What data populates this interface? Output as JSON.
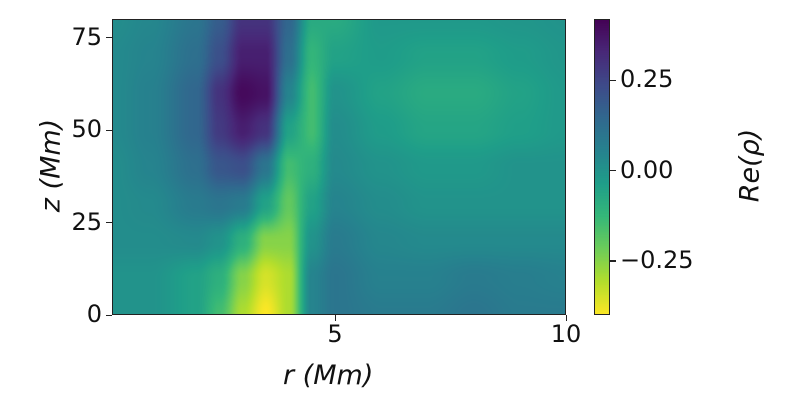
{
  "chart_data": {
    "type": "heatmap",
    "xlabel": "r (Mm)",
    "ylabel": "z (Mm)",
    "colorbar_label": "Re(ρ)",
    "colormap": "viridis_r",
    "xlim": [
      0.17,
      10
    ],
    "ylim": [
      0,
      80
    ],
    "clim": [
      -0.4,
      0.42
    ],
    "x_ticks": [
      {
        "value": 5,
        "label": "5"
      },
      {
        "value": 10,
        "label": "10"
      }
    ],
    "y_ticks": [
      {
        "value": 0,
        "label": "0"
      },
      {
        "value": 25,
        "label": "25"
      },
      {
        "value": 50,
        "label": "50"
      },
      {
        "value": 75,
        "label": "75"
      }
    ],
    "colorbar_ticks": [
      {
        "value": 0.25,
        "label": "0.25"
      },
      {
        "value": 0,
        "label": "0.00"
      },
      {
        "value": -0.25,
        "label": "−0.25"
      }
    ],
    "r": [
      0.2,
      1,
      2,
      2.5,
      3,
      3.5,
      4,
      4.5,
      5,
      6,
      7,
      8,
      9,
      10
    ],
    "z": [
      0,
      10,
      20,
      30,
      40,
      50,
      60,
      70,
      80
    ],
    "values": [
      [
        0,
        0,
        -0.05,
        -0.15,
        -0.3,
        -0.4,
        -0.3,
        0.05,
        0.1,
        0.08,
        0.08,
        0.1,
        0.08,
        0.08
      ],
      [
        0,
        0,
        -0.05,
        -0.1,
        -0.25,
        -0.35,
        -0.3,
        0.05,
        0.1,
        0.06,
        0.06,
        0.08,
        0.07,
        0.06
      ],
      [
        0.02,
        0.02,
        0.03,
        0,
        -0.1,
        -0.25,
        -0.25,
        0,
        0.08,
        0.04,
        0.03,
        0.03,
        0.03,
        0.03
      ],
      [
        0.02,
        0.03,
        0.08,
        0.1,
        0.08,
        -0.05,
        -0.2,
        -0.05,
        0.05,
        0.02,
        0,
        0,
        0,
        0
      ],
      [
        0.02,
        0.05,
        0.12,
        0.2,
        0.22,
        0.1,
        -0.15,
        -0.1,
        0.03,
        0,
        -0.02,
        -0.02,
        0,
        0
      ],
      [
        0.03,
        0.06,
        0.15,
        0.28,
        0.35,
        0.3,
        -0.05,
        -0.15,
        0.02,
        -0.03,
        -0.06,
        -0.06,
        -0.04,
        -0.02
      ],
      [
        0.03,
        0.06,
        0.15,
        0.3,
        0.4,
        0.38,
        0.05,
        -0.15,
        0,
        -0.05,
        -0.08,
        -0.08,
        -0.05,
        -0.02
      ],
      [
        0.03,
        0.05,
        0.12,
        0.22,
        0.35,
        0.35,
        0.12,
        -0.12,
        -0.05,
        -0.03,
        -0.05,
        -0.05,
        -0.03,
        -0.01
      ],
      [
        0.02,
        0.04,
        0.1,
        0.18,
        0.3,
        0.3,
        0.15,
        -0.08,
        -0.08,
        -0.02,
        -0.02,
        -0.02,
        -0.01,
        0
      ]
    ]
  }
}
